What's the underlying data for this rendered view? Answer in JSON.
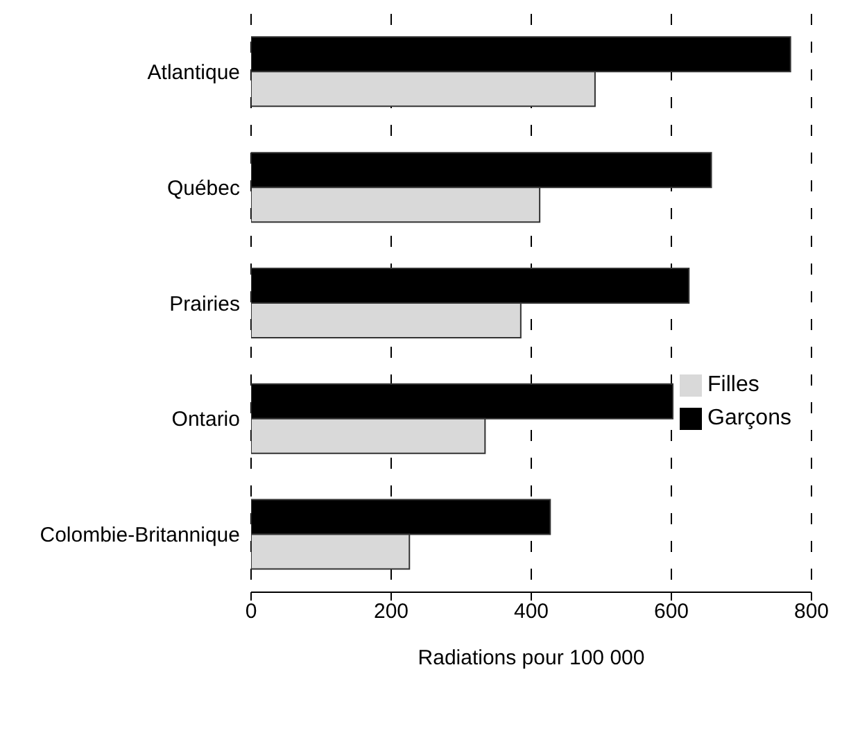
{
  "chart_data": {
    "type": "bar",
    "orientation": "horizontal",
    "xlabel": "Radiations pour 100 000",
    "categories": [
      "Atlantique",
      "Québec",
      "Prairies",
      "Ontario",
      "Colombie-Britannique"
    ],
    "series": [
      {
        "name": "Garçons",
        "color": "#000000",
        "values": [
          770,
          657,
          625,
          602,
          427
        ]
      },
      {
        "name": "Filles",
        "color": "#d9d9d9",
        "values": [
          491,
          412,
          385,
          334,
          226
        ]
      }
    ],
    "xlim": [
      0,
      800
    ],
    "xticks": [
      0,
      200,
      400,
      600,
      800
    ],
    "grid": "x",
    "legend": "right"
  }
}
